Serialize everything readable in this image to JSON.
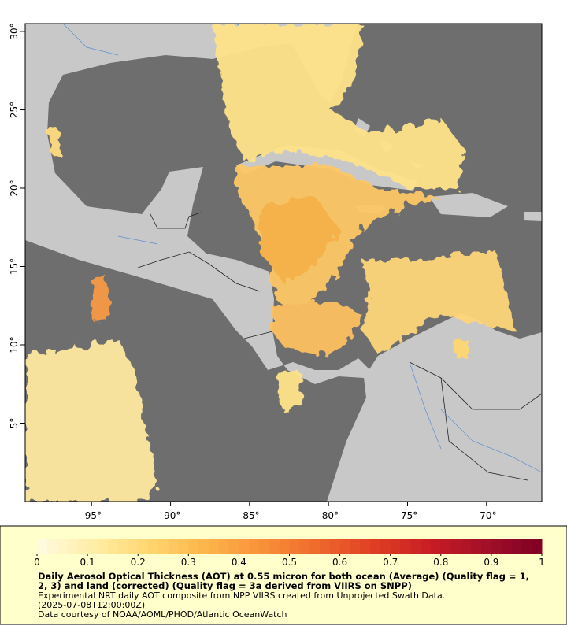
{
  "map": {
    "xlim": [
      -99.2,
      -66.5
    ],
    "ylim": [
      0,
      30.5
    ],
    "xticks": [
      {
        "value": -95,
        "label": "-95°"
      },
      {
        "value": -90,
        "label": "-90°"
      },
      {
        "value": -85,
        "label": "-85°"
      },
      {
        "value": -80,
        "label": "-80°"
      },
      {
        "value": -75,
        "label": "-75°"
      },
      {
        "value": -70,
        "label": "-70°"
      }
    ],
    "yticks": [
      {
        "value": 5,
        "label": "5°"
      },
      {
        "value": 10,
        "label": "10°"
      },
      {
        "value": 15,
        "label": "15°"
      },
      {
        "value": 20,
        "label": "20°"
      },
      {
        "value": 25,
        "label": "25°"
      },
      {
        "value": 30,
        "label": "30°"
      }
    ]
  },
  "colorbar": {
    "lim": [
      0,
      1
    ],
    "ticks": [
      0,
      0.1,
      0.2,
      0.3,
      0.4,
      0.5,
      0.6,
      0.7,
      0.8,
      0.9,
      1
    ],
    "colors": [
      "#fffbe2",
      "#ffeea6",
      "#ffd670",
      "#fdb54a",
      "#f8913a",
      "#ee6a2c",
      "#e03f24",
      "#c81d25",
      "#a20f28",
      "#7f0024"
    ]
  },
  "caption": {
    "title_lines": [
      "Daily Aerosol Optical Thickness (AOT) at 0.55 micron for both ocean (Average) (Quality flag = 1,",
      "2, 3) and land (corrected) (Quality flag = 3a derived from VIIRS on SNPP)"
    ],
    "lines": [
      "Experimental NRT daily AOT composite from NPP VIIRS created from Unprojected Swath Data.",
      "(2025-07-08T12:00:00Z)",
      "Data courtesy of NOAA/AOML/PHOD/Atlantic OceanWatch"
    ]
  }
}
